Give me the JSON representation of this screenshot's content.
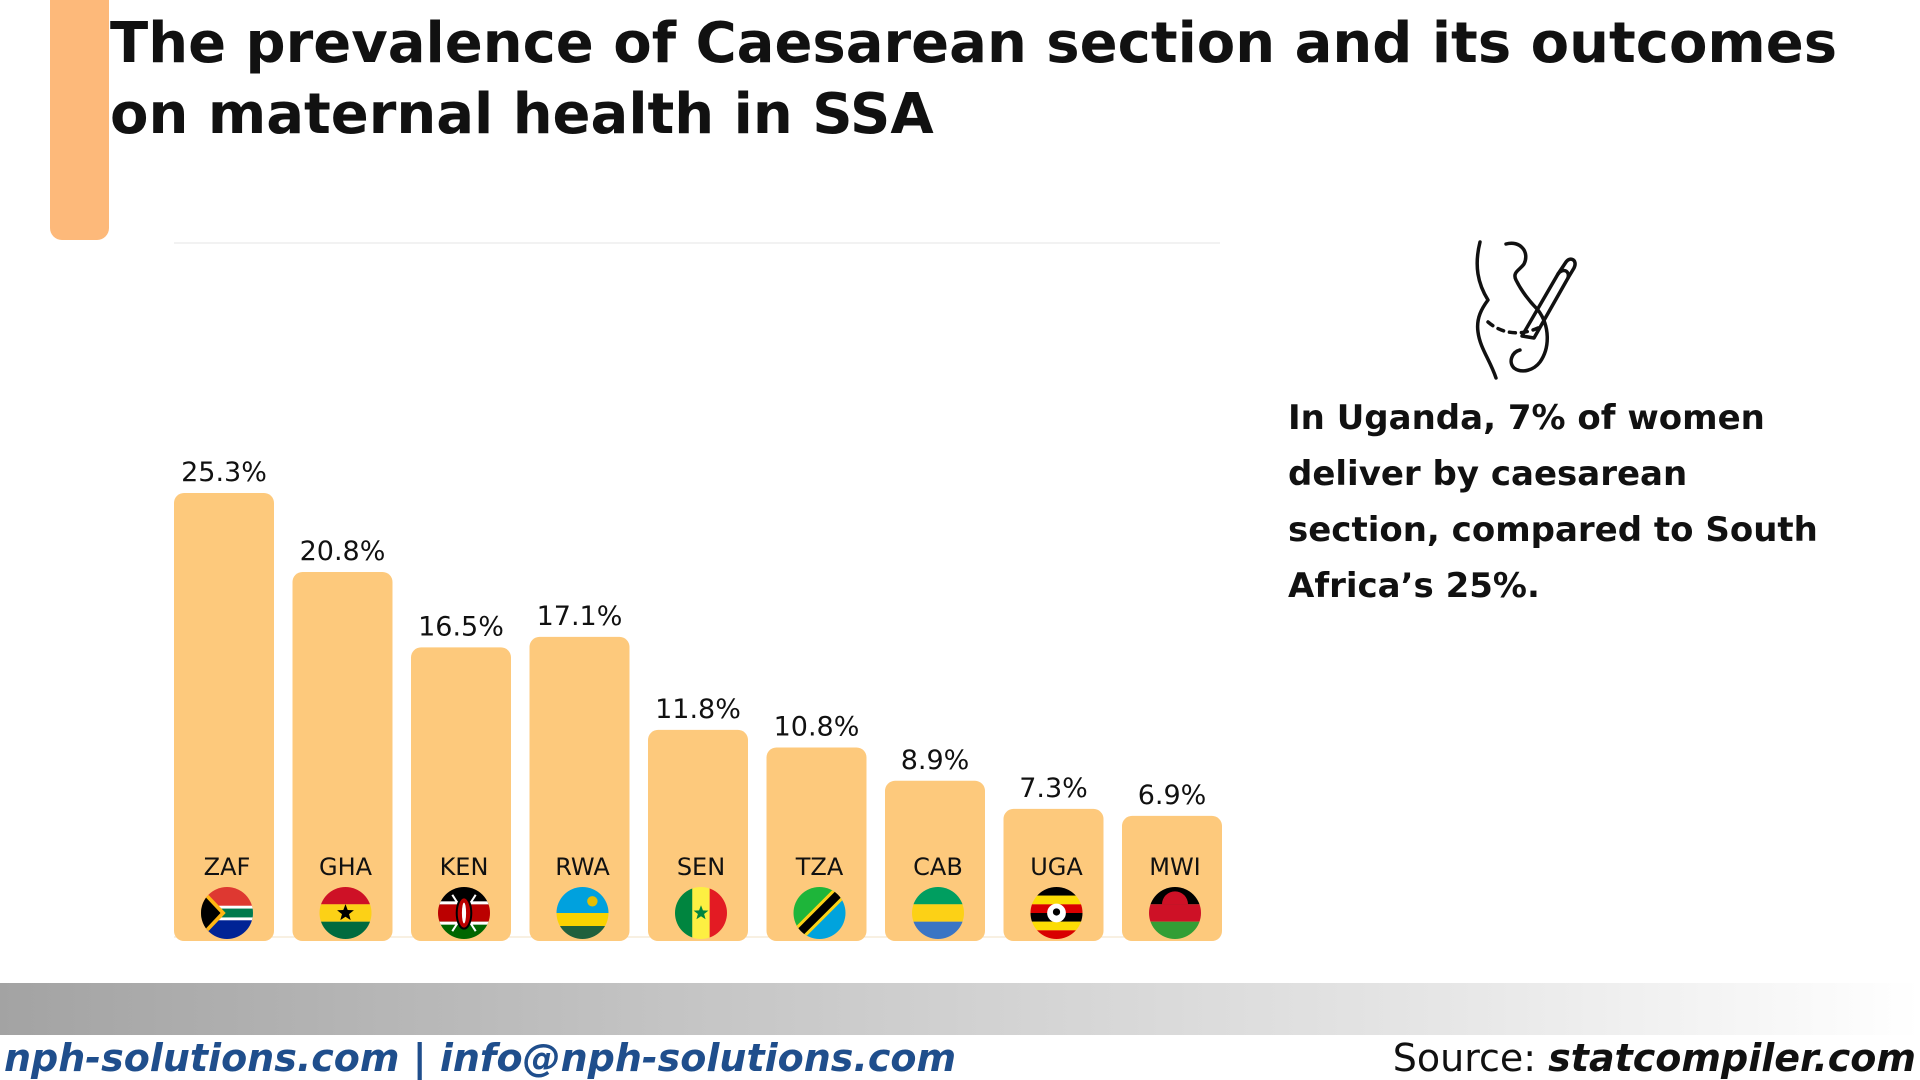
{
  "header": {
    "title": "The prevalence of Caesarean section and its outcomes on maternal health in SSA"
  },
  "callout": {
    "text": "In Uganda, 7% of women deliver by caesarean section, compared to South Africa’s 25%."
  },
  "footer": {
    "contact": "nph-solutions.com | info@nph-solutions.com",
    "source_label": "Source: ",
    "source_link": "statcompiler.com"
  },
  "icons": {
    "decor": "pregnancy-caesarean-icon",
    "flags": [
      "south-africa-flag-icon",
      "ghana-flag-icon",
      "kenya-flag-icon",
      "rwanda-flag-icon",
      "senegal-flag-icon",
      "tanzania-flag-icon",
      "gabon-flag-icon",
      "uganda-flag-icon",
      "malawi-flag-icon"
    ]
  },
  "colors": {
    "bar": "#FDC97C",
    "accent": "#FDB97A",
    "footer_text": "#1F4E8C"
  },
  "chart_data": {
    "type": "bar",
    "categories": [
      "ZAF",
      "GHA",
      "KEN",
      "RWA",
      "SEN",
      "TZA",
      "CAB",
      "UGA",
      "MWI"
    ],
    "values": [
      25.3,
      20.8,
      16.5,
      17.1,
      11.8,
      10.8,
      8.9,
      7.3,
      6.9
    ],
    "value_labels": [
      "25.3%",
      "20.8%",
      "16.5%",
      "17.1%",
      "11.8%",
      "10.8%",
      "8.9%",
      "7.3%",
      "6.9%"
    ],
    "title": "",
    "xlabel": "",
    "ylabel": "",
    "ylim": [
      0,
      40
    ],
    "grid": false,
    "legend": "none"
  }
}
